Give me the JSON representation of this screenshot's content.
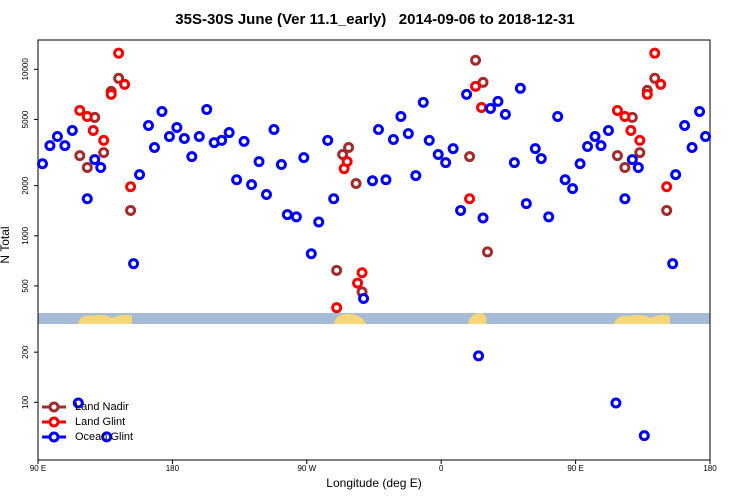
{
  "chart_data": {
    "type": "scatter",
    "title": "35S-30S June (Ver 11.1_early)   2014-09-06 to 2018-12-31",
    "x_label": "Longitude (deg E)",
    "y_label": "N Total",
    "xlim": [
      90,
      540
    ],
    "xticks": [
      {
        "value": 90,
        "label": "90 E"
      },
      {
        "value": 180,
        "label": "180"
      },
      {
        "value": 270,
        "label": "90 W"
      },
      {
        "value": 360,
        "label": "0"
      },
      {
        "value": 450,
        "label": "90 E"
      },
      {
        "value": 540,
        "label": "180"
      }
    ],
    "ylim": [
      45,
      15000
    ],
    "log_scale": true,
    "yticks": [
      100,
      200,
      500,
      1000,
      2000,
      5000,
      10000
    ],
    "legend": "bottom-left",
    "series": [
      {
        "name": "Land Nadir",
        "color": "#a52a2a",
        "x": [
          118,
          123,
          128,
          134,
          139,
          144,
          152,
          290,
          294,
          298,
          303,
          307,
          379,
          383,
          388,
          391,
          478,
          483,
          488,
          493,
          498,
          503,
          511
        ],
        "values": [
          3030,
          2570,
          5140,
          3160,
          7370,
          8830,
          1420,
          620,
          3080,
          3390,
          2060,
          460,
          2990,
          11330,
          8350,
          800,
          3030,
          2570,
          5140,
          3160,
          7470,
          8830,
          1420
        ]
      },
      {
        "name": "Land Glint",
        "color": "#ff0000",
        "x": [
          118,
          123,
          127,
          134,
          139,
          144,
          148,
          152,
          290,
          295,
          297,
          304,
          307,
          379,
          383,
          387,
          478,
          483,
          487,
          493,
          498,
          503,
          507,
          511
        ],
        "values": [
          5660,
          5210,
          4290,
          3740,
          7070,
          12500,
          8120,
          1970,
          370,
          2530,
          2790,
          520,
          600,
          1670,
          7900,
          5900,
          5660,
          5210,
          4290,
          3740,
          7070,
          12500,
          8120,
          1970
        ]
      },
      {
        "name": "Ocean Glint",
        "color": "#0000ff",
        "x": [
          93,
          98,
          103,
          108,
          113,
          117,
          123,
          128,
          132,
          136,
          154,
          158,
          164,
          168,
          173,
          178,
          183,
          188,
          193,
          198,
          203,
          208,
          213,
          218,
          223,
          228,
          233,
          238,
          243,
          248,
          253,
          257,
          263,
          268,
          273,
          278,
          284,
          288,
          308,
          314,
          318,
          323,
          328,
          333,
          338,
          343,
          348,
          352,
          358,
          363,
          368,
          373,
          377,
          385,
          388,
          393,
          398,
          403,
          409,
          413,
          417,
          423,
          427,
          432,
          438,
          443,
          448,
          453,
          458,
          463,
          467,
          472,
          477,
          483,
          488,
          492,
          496,
          515,
          517,
          523,
          528,
          533,
          537
        ],
        "values": [
          2710,
          3480,
          3950,
          3480,
          4290,
          99,
          1670,
          2870,
          2570,
          62,
          680,
          2330,
          4600,
          3390,
          5580,
          3950,
          4470,
          3840,
          2990,
          3950,
          5740,
          3630,
          3740,
          4170,
          2170,
          3690,
          2030,
          2790,
          1770,
          4350,
          2680,
          1340,
          1300,
          2950,
          780,
          1210,
          3740,
          1670,
          420,
          2140,
          4350,
          2170,
          3790,
          5210,
          4110,
          2300,
          6330,
          3740,
          3080,
          2750,
          3340,
          1420,
          7070,
          190,
          1280,
          5820,
          6420,
          5360,
          2750,
          7690,
          1560,
          3340,
          2910,
          1300,
          5210,
          2170,
          1920,
          2710,
          3440,
          3950,
          3480,
          4290,
          99,
          1670,
          2870,
          2570,
          63,
          680,
          2330,
          4600,
          3390,
          5580,
          3950
        ]
      }
    ]
  }
}
